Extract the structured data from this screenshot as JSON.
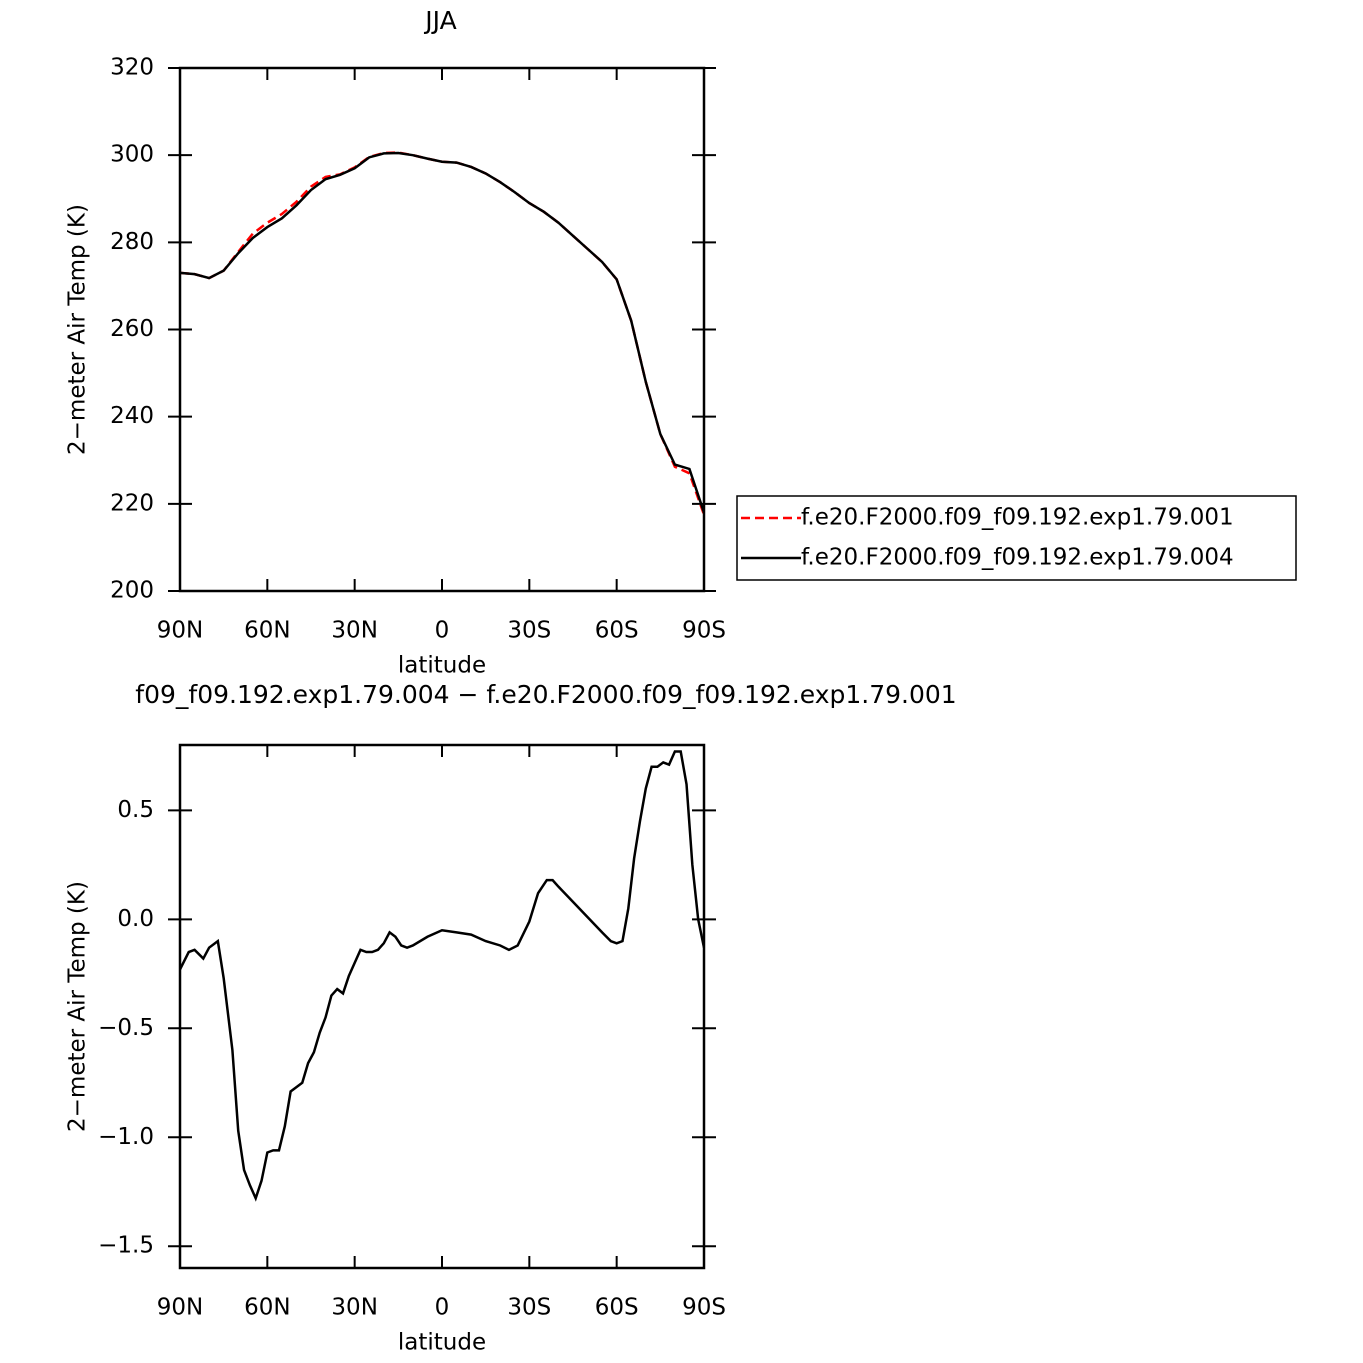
{
  "chart_data": [
    {
      "type": "line",
      "title": "JJA",
      "xlabel": "latitude",
      "ylabel": "2−meter Air Temp (K)",
      "x": [
        90,
        85,
        80,
        75,
        70,
        65,
        60,
        55,
        50,
        45,
        40,
        35,
        30,
        25,
        20,
        15,
        10,
        5,
        0,
        -5,
        -10,
        -15,
        -20,
        -25,
        -30,
        -35,
        -40,
        -45,
        -50,
        -55,
        -60,
        -65,
        -70,
        -75,
        -80,
        -85,
        -90
      ],
      "series": [
        {
          "name": "f.e20.F2000.f09_f09.192.exp1.79.001",
          "color": "#ff0000",
          "dash": "dashed",
          "values": [
            273,
            272.7,
            271.8,
            273.5,
            277.8,
            282,
            284.5,
            286.5,
            289.3,
            292.8,
            295,
            295.6,
            297.2,
            299.6,
            300.5,
            300.6,
            300,
            299.2,
            298.5,
            298.3,
            297.3,
            295.8,
            293.8,
            291.5,
            289,
            287,
            284.5,
            281.5,
            278.5,
            275.5,
            271.5,
            262,
            248,
            236,
            228.5,
            227,
            217.5
          ]
        },
        {
          "name": "f.e20.F2000.f09_f09.192.exp1.79.004",
          "color": "#000000",
          "dash": "solid",
          "values": [
            273,
            272.7,
            271.8,
            273.5,
            277.5,
            281,
            283.5,
            285.5,
            288.5,
            292,
            294.5,
            295.5,
            297,
            299.5,
            300.4,
            300.5,
            300,
            299.2,
            298.5,
            298.3,
            297.3,
            295.8,
            293.8,
            291.5,
            289,
            287,
            284.5,
            281.5,
            278.5,
            275.5,
            271.5,
            262,
            248,
            236,
            229,
            228,
            218
          ]
        }
      ],
      "xlim": [
        90,
        -90
      ],
      "xticks": [
        {
          "value": 90,
          "label": "90N"
        },
        {
          "value": 60,
          "label": "60N"
        },
        {
          "value": 30,
          "label": "30N"
        },
        0,
        {
          "value": -30,
          "label": "30S"
        },
        {
          "value": -60,
          "label": "60S"
        },
        {
          "value": -90,
          "label": "90S"
        }
      ],
      "ylim": [
        200,
        320
      ],
      "yticks": [
        200,
        220,
        240,
        260,
        280,
        300,
        320
      ],
      "legend": "right"
    },
    {
      "type": "line",
      "title": "f09_f09.192.exp1.79.004 − f.e20.F2000.f09_f09.192.exp1.79.001",
      "xlabel": "latitude",
      "ylabel": "2−meter Air Temp (K)",
      "x": [
        90,
        87,
        85,
        82,
        80,
        77,
        75,
        72,
        70,
        68,
        66,
        64,
        62,
        60,
        58,
        56,
        54,
        52,
        50,
        48,
        46,
        44,
        42,
        40,
        38,
        36,
        34,
        32,
        30,
        28,
        26,
        24,
        22,
        20,
        18,
        16,
        14,
        12,
        10,
        5,
        0,
        -5,
        -10,
        -15,
        -20,
        -23,
        -26,
        -30,
        -33,
        -36,
        -38,
        -40,
        -45,
        -50,
        -55,
        -58,
        -60,
        -62,
        -64,
        -66,
        -68,
        -70,
        -72,
        -74,
        -76,
        -78,
        -80,
        -82,
        -84,
        -86,
        -88,
        -90
      ],
      "color": "#000000",
      "values": [
        -0.23,
        -0.15,
        -0.14,
        -0.18,
        -0.13,
        -0.1,
        -0.27,
        -0.6,
        -0.97,
        -1.15,
        -1.22,
        -1.28,
        -1.2,
        -1.07,
        -1.06,
        -1.06,
        -0.95,
        -0.79,
        -0.77,
        -0.75,
        -0.66,
        -0.61,
        -0.52,
        -0.45,
        -0.35,
        -0.32,
        -0.34,
        -0.26,
        -0.2,
        -0.14,
        -0.15,
        -0.15,
        -0.14,
        -0.11,
        -0.06,
        -0.08,
        -0.12,
        -0.13,
        -0.12,
        -0.08,
        -0.05,
        -0.06,
        -0.07,
        -0.1,
        -0.12,
        -0.14,
        -0.12,
        -0.01,
        0.12,
        0.18,
        0.18,
        0.15,
        0.08,
        0.01,
        -0.06,
        -0.1,
        -0.11,
        -0.1,
        0.05,
        0.28,
        0.45,
        0.6,
        0.7,
        0.7,
        0.72,
        0.71,
        0.77,
        0.77,
        0.62,
        0.25,
        0,
        -0.13
      ],
      "xlim": [
        90,
        -90
      ],
      "xticks": [
        {
          "value": 90,
          "label": "90N"
        },
        {
          "value": 60,
          "label": "60N"
        },
        {
          "value": 30,
          "label": "30N"
        },
        0,
        {
          "value": -30,
          "label": "30S"
        },
        {
          "value": -60,
          "label": "60S"
        },
        {
          "value": -90,
          "label": "90S"
        }
      ],
      "ylim": [
        -1.6,
        0.8
      ],
      "yticks": [
        {
          "value": -1.5,
          "label": "−1.5"
        },
        {
          "value": -1,
          "label": "−1.0"
        },
        {
          "value": -0.5,
          "label": "−0.5"
        },
        {
          "value": 0,
          "label": "0.0"
        },
        0.5
      ]
    }
  ]
}
